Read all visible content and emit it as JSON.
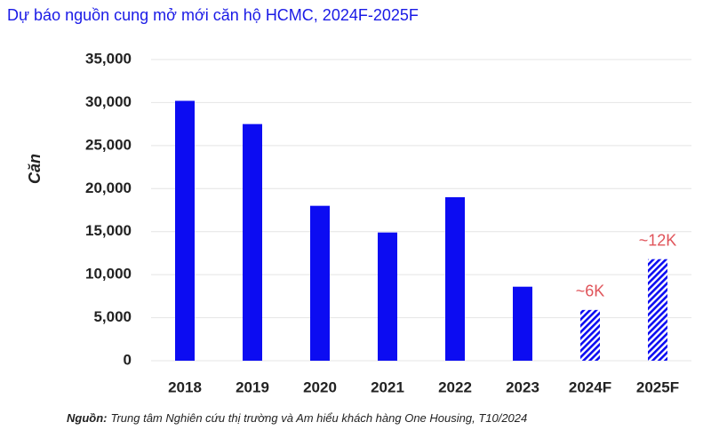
{
  "chart_data": {
    "type": "bar",
    "title": "Dự báo nguồn cung mở mới  căn hộ HCMC, 2024F-2025F",
    "y_label": "Căn",
    "categories": [
      "2018",
      "2019",
      "2020",
      "2021",
      "2022",
      "2023",
      "2024F",
      "2025F"
    ],
    "values": [
      30200,
      27500,
      18000,
      14900,
      19000,
      8600,
      5900,
      11800
    ],
    "value_labels": [
      null,
      null,
      null,
      null,
      null,
      null,
      "~6K",
      "~12K"
    ],
    "hatched": [
      false,
      false,
      false,
      false,
      false,
      false,
      true,
      true
    ],
    "color": "#0c0cf2",
    "label_color": "#e0545a",
    "ylim": [
      0,
      35000
    ],
    "yticks": [
      0,
      {
        "value": 5000,
        "label": "5,000"
      },
      {
        "value": 10000,
        "label": "10,000"
      },
      {
        "value": 15000,
        "label": "15,000"
      },
      {
        "value": 20000,
        "label": "20,000"
      },
      {
        "value": 25000,
        "label": "25,000"
      },
      {
        "value": 30000,
        "label": "30,000"
      },
      {
        "value": 35000,
        "label": "35,000"
      }
    ],
    "grid": true,
    "source_label": "Nguồn:",
    "source": "Trung tâm Nghiên cứu thị trường và Am hiểu khách hàng One Housing, T10/2024"
  }
}
